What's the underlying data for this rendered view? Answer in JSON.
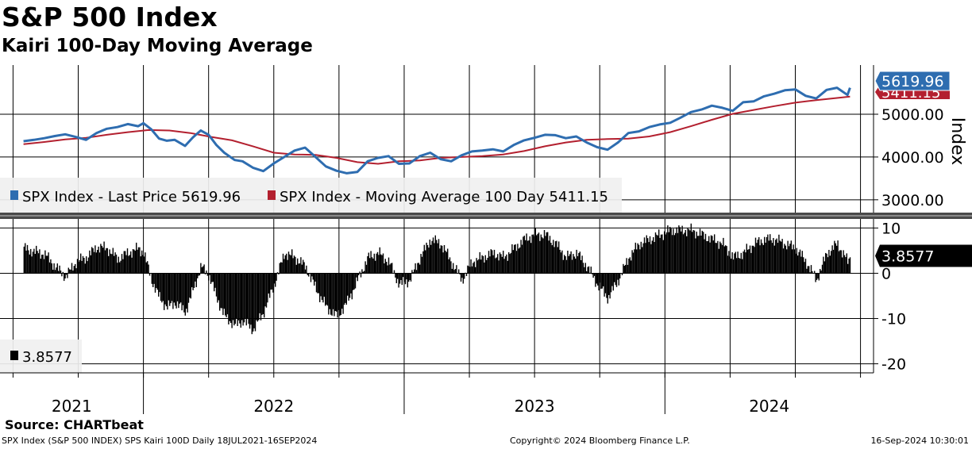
{
  "title": "S&P 500 Index",
  "subtitle": "Kairi 100-Day Moving Average",
  "source": "Source: CHARTbeat",
  "footer": {
    "left": "SPX Index (S&P 500 INDEX) SPS Kairi 100D  Daily 18JUL2021-16SEP2024",
    "center": "Copyright© 2024 Bloomberg Finance L.P.",
    "right": "16-Sep-2024 10:30:01"
  },
  "colors": {
    "price": "#2e6db0",
    "ma": "#b3202f",
    "kairi": "#000000",
    "grid": "#000000"
  },
  "chart_data": [
    {
      "type": "line",
      "panel": "upper",
      "ylabel": "Index",
      "ylim": [
        2700,
        6150
      ],
      "yticks": [
        3000,
        4000,
        5000
      ],
      "ytick_labels": [
        "3000.00",
        "4000.00",
        "5000.00"
      ],
      "xlim": [
        2021.45,
        2024.8
      ],
      "x_years": [
        2021,
        2022,
        2023,
        2024
      ],
      "x_year_labels": [
        "2021",
        "2022",
        "2023",
        "2024"
      ],
      "legend": [
        {
          "label": "SPX Index - Last Price 5619.96",
          "color": "#2e6db0"
        },
        {
          "label": "SPX Index - Moving Average 100 Day 5411.15",
          "color": "#b3202f"
        }
      ],
      "last_value_labels": {
        "price": "5619.96",
        "ma": "5411.15"
      },
      "series": [
        {
          "name": "SPX Index - Last Price",
          "x": [
            2021.54,
            2021.58,
            2021.62,
            2021.66,
            2021.7,
            2021.74,
            2021.78,
            2021.82,
            2021.86,
            2021.9,
            2021.94,
            2021.98,
            2022.0,
            2022.03,
            2022.06,
            2022.09,
            2022.12,
            2022.16,
            2022.19,
            2022.22,
            2022.25,
            2022.28,
            2022.31,
            2022.35,
            2022.38,
            2022.42,
            2022.46,
            2022.5,
            2022.54,
            2022.58,
            2022.62,
            2022.66,
            2022.7,
            2022.74,
            2022.78,
            2022.82,
            2022.86,
            2022.9,
            2022.94,
            2022.98,
            2023.02,
            2023.06,
            2023.1,
            2023.14,
            2023.18,
            2023.22,
            2023.26,
            2023.3,
            2023.34,
            2023.38,
            2023.42,
            2023.46,
            2023.5,
            2023.54,
            2023.58,
            2023.62,
            2023.66,
            2023.7,
            2023.74,
            2023.78,
            2023.82,
            2023.86,
            2023.9,
            2023.94,
            2023.98,
            2024.02,
            2024.06,
            2024.1,
            2024.14,
            2024.18,
            2024.22,
            2024.26,
            2024.3,
            2024.34,
            2024.38,
            2024.42,
            2024.46,
            2024.5,
            2024.54,
            2024.58,
            2024.62,
            2024.66,
            2024.7,
            2024.71
          ],
          "values": [
            4370,
            4400,
            4440,
            4490,
            4530,
            4470,
            4400,
            4560,
            4660,
            4700,
            4770,
            4720,
            4790,
            4650,
            4430,
            4380,
            4400,
            4260,
            4460,
            4620,
            4520,
            4280,
            4100,
            3930,
            3900,
            3750,
            3670,
            3850,
            4000,
            4150,
            4220,
            4000,
            3780,
            3680,
            3620,
            3650,
            3900,
            3980,
            4020,
            3840,
            3850,
            4020,
            4100,
            3950,
            3900,
            4040,
            4130,
            4150,
            4180,
            4130,
            4280,
            4390,
            4450,
            4520,
            4510,
            4440,
            4480,
            4340,
            4230,
            4170,
            4340,
            4560,
            4600,
            4700,
            4760,
            4800,
            4920,
            5050,
            5110,
            5200,
            5150,
            5080,
            5280,
            5300,
            5420,
            5480,
            5560,
            5580,
            5430,
            5370,
            5570,
            5620,
            5450,
            5620
          ]
        },
        {
          "name": "SPX Index - Moving Average 100 Day",
          "x": [
            2021.54,
            2021.62,
            2021.7,
            2021.78,
            2021.86,
            2021.94,
            2022.02,
            2022.1,
            2022.18,
            2022.26,
            2022.34,
            2022.42,
            2022.5,
            2022.58,
            2022.66,
            2022.74,
            2022.82,
            2022.9,
            2022.98,
            2023.06,
            2023.14,
            2023.22,
            2023.3,
            2023.38,
            2023.46,
            2023.54,
            2023.62,
            2023.7,
            2023.78,
            2023.86,
            2023.94,
            2024.02,
            2024.1,
            2024.18,
            2024.26,
            2024.34,
            2024.42,
            2024.5,
            2024.58,
            2024.66,
            2024.71
          ],
          "values": [
            4300,
            4350,
            4410,
            4450,
            4520,
            4580,
            4630,
            4620,
            4560,
            4470,
            4390,
            4250,
            4100,
            4060,
            4050,
            3980,
            3880,
            3840,
            3900,
            3920,
            3980,
            4000,
            4020,
            4060,
            4140,
            4250,
            4340,
            4400,
            4420,
            4430,
            4480,
            4580,
            4720,
            4870,
            5010,
            5100,
            5190,
            5270,
            5330,
            5380,
            5411
          ]
        }
      ]
    },
    {
      "type": "bar",
      "panel": "lower",
      "name": "Kairi 100 Day",
      "ylim": [
        -22,
        12
      ],
      "yticks": [
        10,
        0,
        -10,
        -20
      ],
      "ytick_labels": [
        "10",
        "0",
        "-10",
        "-20"
      ],
      "last_value_label": "3.8577",
      "legend_label": "3.8577",
      "x": [
        2021.54,
        2021.58,
        2021.62,
        2021.66,
        2021.7,
        2021.74,
        2021.78,
        2021.82,
        2021.86,
        2021.9,
        2021.94,
        2021.98,
        2022.0,
        2022.03,
        2022.06,
        2022.09,
        2022.12,
        2022.16,
        2022.19,
        2022.22,
        2022.25,
        2022.28,
        2022.31,
        2022.35,
        2022.38,
        2022.42,
        2022.46,
        2022.5,
        2022.54,
        2022.58,
        2022.62,
        2022.66,
        2022.7,
        2022.74,
        2022.78,
        2022.82,
        2022.86,
        2022.9,
        2022.94,
        2022.98,
        2023.02,
        2023.06,
        2023.1,
        2023.14,
        2023.18,
        2023.22,
        2023.26,
        2023.3,
        2023.34,
        2023.38,
        2023.42,
        2023.46,
        2023.5,
        2023.54,
        2023.58,
        2023.62,
        2023.66,
        2023.7,
        2023.74,
        2023.78,
        2023.82,
        2023.86,
        2023.9,
        2023.94,
        2023.98,
        2024.02,
        2024.06,
        2024.1,
        2024.14,
        2024.18,
        2024.22,
        2024.26,
        2024.3,
        2024.34,
        2024.38,
        2024.42,
        2024.46,
        2024.5,
        2024.54,
        2024.58,
        2024.62,
        2024.66,
        2024.7,
        2024.71
      ],
      "values": [
        5.5,
        4.8,
        4.2,
        1.5,
        -0.8,
        2.5,
        3.5,
        5.8,
        5.5,
        3.2,
        4.5,
        5.5,
        4.5,
        -1.5,
        -5.5,
        -7.5,
        -6.5,
        -8.5,
        -3.5,
        1.5,
        -0.5,
        -5.5,
        -9.5,
        -11.5,
        -10.5,
        -12.5,
        -8.5,
        -2.5,
        4.5,
        3.5,
        1.5,
        -3.5,
        -7.5,
        -9.5,
        -6.5,
        -1.5,
        3.5,
        4.5,
        2.5,
        -2.5,
        -1.5,
        3.5,
        7.5,
        6.5,
        2.5,
        -1.5,
        2.5,
        3.5,
        4.5,
        3.5,
        5.5,
        7.5,
        8.5,
        8.5,
        6.5,
        3.5,
        4.5,
        1.5,
        -2.5,
        -5.5,
        -1.5,
        3.5,
        6.5,
        7.5,
        8.5,
        9.5,
        9.5,
        9.5,
        8.5,
        7.5,
        6.5,
        3.5,
        4.5,
        6.5,
        7.5,
        7.5,
        6.5,
        5.5,
        2.5,
        -1.5,
        4.5,
        6.5,
        2.5,
        3.86
      ]
    }
  ]
}
